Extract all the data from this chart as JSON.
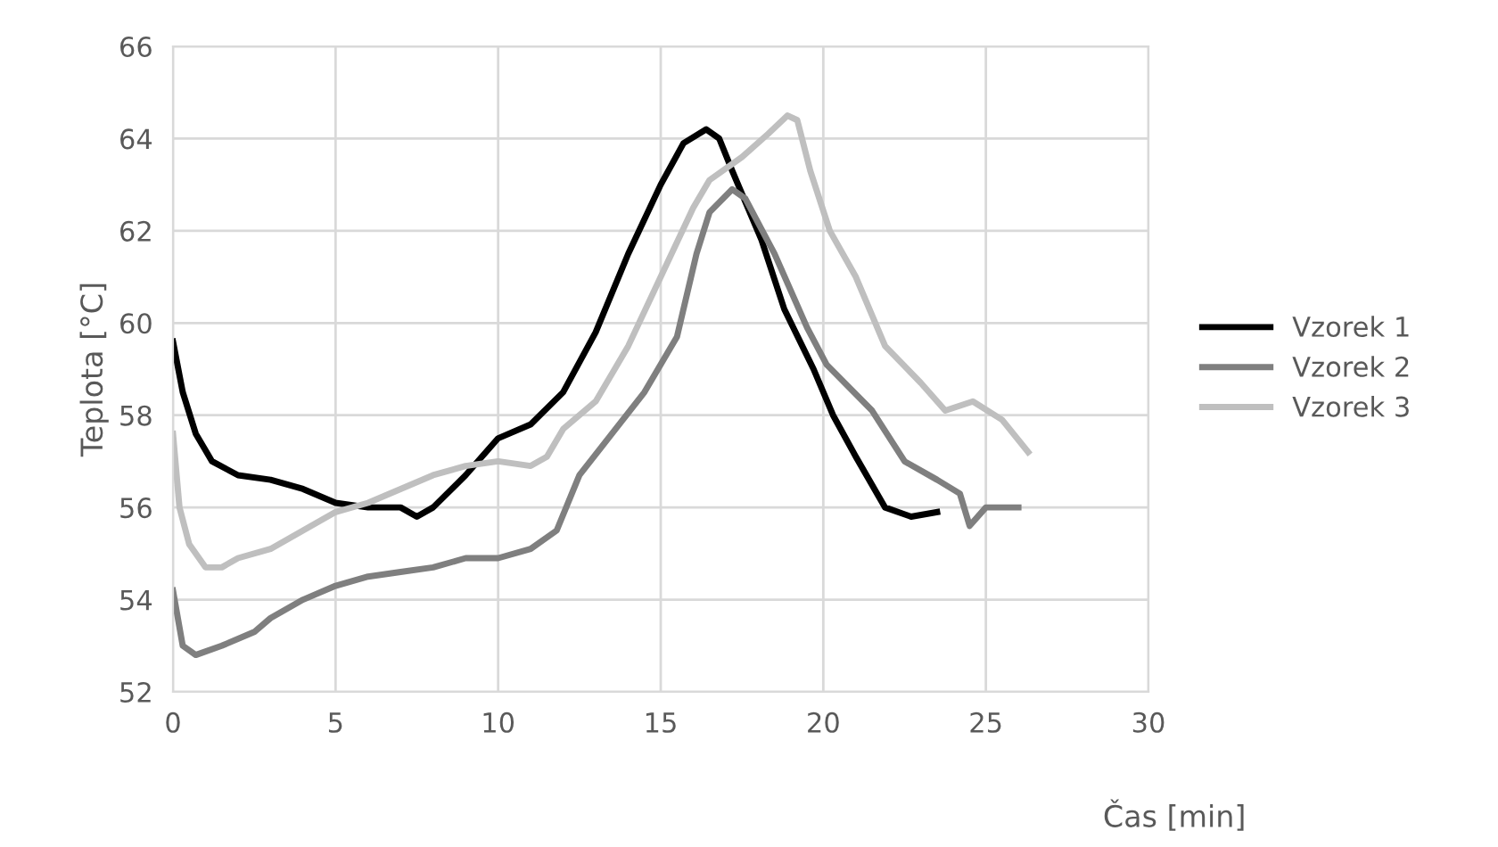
{
  "chart_data": {
    "type": "line",
    "xlabel": "Čas [min]",
    "ylabel": "Teplota [°C]",
    "xlim": [
      0,
      30
    ],
    "xticks": [
      0,
      5,
      10,
      15,
      20,
      25,
      30
    ],
    "ylim": [
      52,
      66
    ],
    "yticks": [
      52,
      54,
      56,
      58,
      60,
      62,
      64,
      66
    ],
    "grid": true,
    "legend": "right",
    "marker": "none",
    "line_style": "solid",
    "series": [
      {
        "name": "Vzorek 1",
        "color": "#000000",
        "x": [
          0,
          0.3,
          0.7,
          1.2,
          2,
          3,
          4,
          5,
          6,
          7,
          7.5,
          8,
          9,
          10,
          11,
          12,
          13,
          14,
          15,
          15.7,
          16.4,
          16.8,
          17.2,
          17.8,
          18.1,
          18.8,
          19.7,
          20.3,
          21.0,
          21.9,
          22.7,
          23.5
        ],
        "values": [
          59.6,
          58.5,
          57.6,
          57.0,
          56.7,
          56.6,
          56.4,
          56.1,
          56.0,
          56.0,
          55.8,
          56.0,
          56.7,
          57.5,
          57.8,
          58.5,
          59.8,
          61.5,
          63.0,
          63.9,
          64.2,
          64.0,
          63.3,
          62.3,
          61.8,
          60.3,
          59.0,
          58.0,
          57.1,
          56.0,
          55.8,
          55.9
        ]
      },
      {
        "name": "Vzorek 2",
        "color": "#7f7f7f",
        "x": [
          0,
          0.3,
          0.7,
          1.5,
          2.5,
          3,
          4,
          5,
          6,
          7,
          8,
          9,
          10,
          11,
          11.8,
          12.5,
          13.5,
          14.5,
          15.5,
          16.1,
          16.5,
          17.2,
          17.6,
          18.5,
          19.5,
          20.1,
          21.5,
          22.5,
          23.5,
          24.2,
          24.5,
          25,
          26
        ],
        "values": [
          54.2,
          53.0,
          52.8,
          53.0,
          53.3,
          53.6,
          54.0,
          54.3,
          54.5,
          54.6,
          54.7,
          54.9,
          54.9,
          55.1,
          55.5,
          56.7,
          57.6,
          58.5,
          59.7,
          61.5,
          62.4,
          62.9,
          62.7,
          61.5,
          59.9,
          59.1,
          58.1,
          57.0,
          56.6,
          56.3,
          55.6,
          56.0,
          56.0
        ]
      },
      {
        "name": "Vzorek 3",
        "color": "#bfbfbf",
        "x": [
          0,
          0.2,
          0.5,
          1,
          1.5,
          2,
          3,
          4,
          5,
          6,
          7,
          8,
          9,
          10,
          11,
          11.5,
          12,
          13,
          14,
          15,
          16,
          16.5,
          17.5,
          18.3,
          18.9,
          19.2,
          19.6,
          20.2,
          21,
          21.9,
          23,
          23.75,
          24.6,
          25.5,
          26.3
        ],
        "values": [
          57.6,
          56.0,
          55.2,
          54.7,
          54.7,
          54.9,
          55.1,
          55.5,
          55.9,
          56.1,
          56.4,
          56.7,
          56.9,
          57.0,
          56.9,
          57.1,
          57.7,
          58.3,
          59.5,
          61.0,
          62.5,
          63.1,
          63.6,
          64.1,
          64.5,
          64.4,
          63.3,
          62.0,
          61.0,
          59.5,
          58.7,
          58.1,
          58.3,
          57.9,
          57.2
        ]
      }
    ]
  }
}
